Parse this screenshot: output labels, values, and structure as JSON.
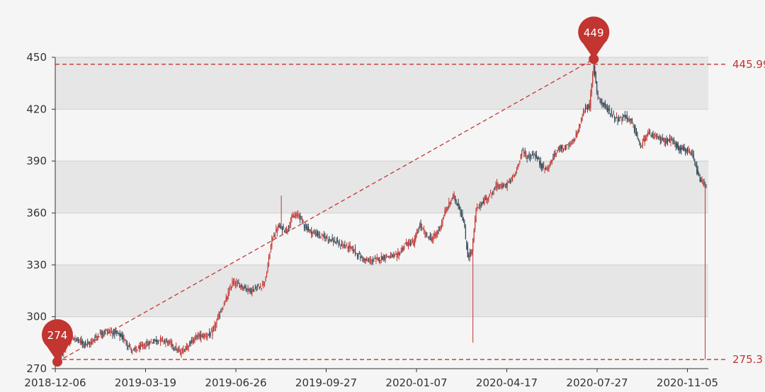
{
  "chart_data": {
    "type": "candlestick",
    "x_ticks": [
      "2018-12-06",
      "2019-03-19",
      "2019-06-26",
      "2019-09-27",
      "2020-01-07",
      "2020-04-17",
      "2020-07-27",
      "2020-11-05"
    ],
    "y_ticks": [
      "270",
      "300",
      "330",
      "360",
      "390",
      "420",
      "450"
    ],
    "ylim": [
      270,
      450
    ],
    "markpoints": {
      "min": {
        "label": "274",
        "value": 274
      },
      "max": {
        "label": "449",
        "value": 449
      }
    },
    "ref_lines": {
      "upper": {
        "label": "445.99",
        "value": 445.99
      },
      "lower": {
        "label": "275.3",
        "value": 275.3
      }
    },
    "trend_line": {
      "from": 274,
      "to": 449
    },
    "colors": {
      "up": "#c23531",
      "down": "#2f4554",
      "band_dark": "#e6e6e6",
      "band_light": "#f5f5f5",
      "ref": "#c23531"
    },
    "path": [
      [
        0,
        276
      ],
      [
        6,
        280
      ],
      [
        14,
        288
      ],
      [
        20,
        286
      ],
      [
        30,
        284
      ],
      [
        40,
        290
      ],
      [
        48,
        292
      ],
      [
        58,
        290
      ],
      [
        64,
        287
      ],
      [
        72,
        280
      ],
      [
        82,
        283
      ],
      [
        92,
        286
      ],
      [
        100,
        287
      ],
      [
        110,
        284
      ],
      [
        118,
        279
      ],
      [
        126,
        284
      ],
      [
        134,
        289
      ],
      [
        140,
        289
      ],
      [
        148,
        290
      ],
      [
        156,
        302
      ],
      [
        162,
        310
      ],
      [
        168,
        320
      ],
      [
        176,
        318
      ],
      [
        186,
        315
      ],
      [
        196,
        318
      ],
      [
        200,
        322
      ],
      [
        206,
        345
      ],
      [
        212,
        352
      ],
      [
        220,
        350
      ],
      [
        226,
        358
      ],
      [
        232,
        359
      ],
      [
        238,
        352
      ],
      [
        244,
        349
      ],
      [
        252,
        347
      ],
      [
        262,
        345
      ],
      [
        270,
        342
      ],
      [
        282,
        340
      ],
      [
        290,
        335
      ],
      [
        298,
        332
      ],
      [
        306,
        333
      ],
      [
        316,
        335
      ],
      [
        326,
        335
      ],
      [
        334,
        342
      ],
      [
        342,
        343
      ],
      [
        348,
        353
      ],
      [
        354,
        347
      ],
      [
        360,
        345
      ],
      [
        366,
        350
      ],
      [
        372,
        360
      ],
      [
        380,
        370
      ],
      [
        386,
        363
      ],
      [
        390,
        355
      ],
      [
        394,
        335
      ],
      [
        398,
        338
      ],
      [
        402,
        362
      ],
      [
        408,
        366
      ],
      [
        416,
        371
      ],
      [
        422,
        376
      ],
      [
        428,
        375
      ],
      [
        434,
        378
      ],
      [
        440,
        383
      ],
      [
        446,
        396
      ],
      [
        452,
        392
      ],
      [
        458,
        394
      ],
      [
        464,
        388
      ],
      [
        470,
        385
      ],
      [
        476,
        392
      ],
      [
        482,
        398
      ],
      [
        488,
        398
      ],
      [
        494,
        400
      ],
      [
        500,
        408
      ],
      [
        506,
        420
      ],
      [
        511,
        422
      ],
      [
        515,
        446
      ],
      [
        518,
        430
      ],
      [
        522,
        424
      ],
      [
        528,
        420
      ],
      [
        534,
        416
      ],
      [
        540,
        414
      ],
      [
        546,
        416
      ],
      [
        552,
        412
      ],
      [
        560,
        398
      ],
      [
        566,
        406
      ],
      [
        574,
        404
      ],
      [
        582,
        402
      ],
      [
        590,
        402
      ],
      [
        596,
        398
      ],
      [
        604,
        396
      ],
      [
        610,
        393
      ],
      [
        616,
        380
      ],
      [
        620,
        377
      ],
      [
        623,
        376
      ]
    ]
  }
}
